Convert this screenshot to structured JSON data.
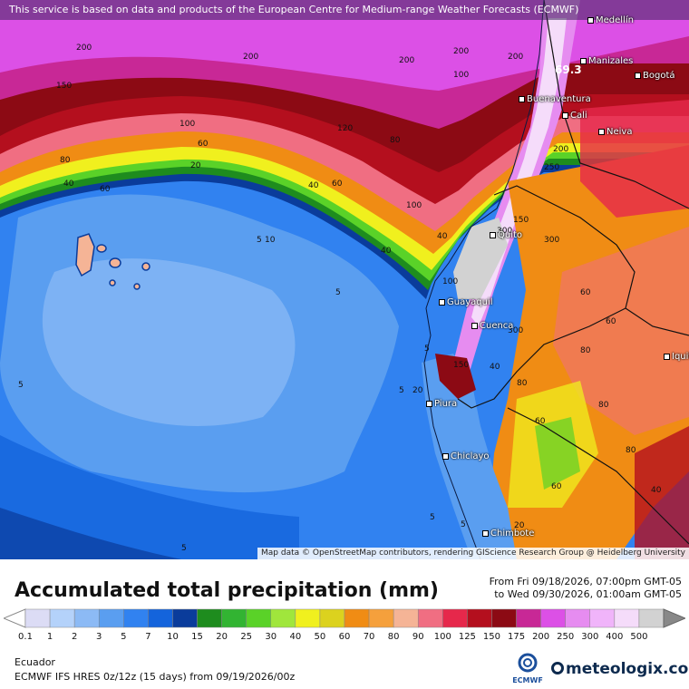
{
  "banner": "This service is based on data and products of the European Centre for Medium-range Weather Forecasts (ECMWF)",
  "attribution": "Map data © OpenStreetMap contributors, rendering GIScience Research Group @ Heidelberg University",
  "title": "Accumulated total precipitation (mm)",
  "date_from": "From Fri 09/18/2026, 07:00pm GMT-05",
  "date_to": "to Wed 09/30/2026, 01:00am GMT-05",
  "region": "Ecuador",
  "model": "ECMWF IFS HRES 0z/12z (15 days) from 09/19/2026/00z",
  "ecmwf_label": "ECMWF",
  "brand": "meteologix.com",
  "legend": {
    "ticks": [
      "0.1",
      "1",
      "2",
      "3",
      "5",
      "7",
      "10",
      "15",
      "20",
      "25",
      "30",
      "40",
      "50",
      "60",
      "70",
      "80",
      "90",
      "100",
      "125",
      "150",
      "175",
      "200",
      "250",
      "300",
      "400",
      "500"
    ],
    "colors": [
      "#dcdcf5",
      "#b4d2fa",
      "#8cbaf5",
      "#5a9ef0",
      "#3182f0",
      "#1464dc",
      "#0a3c9b",
      "#1e8c1e",
      "#32b432",
      "#5ad228",
      "#a0e63c",
      "#f0f01e",
      "#dcd21e",
      "#f08c14",
      "#f5a03c",
      "#f5b496",
      "#f06e82",
      "#e6284b",
      "#b40f1e",
      "#8c0a14",
      "#c82896",
      "#dc50e6",
      "#e68cf0",
      "#f0b4fa",
      "#f5dcfa",
      "#d2d2d2"
    ]
  },
  "cities": [
    {
      "name": "Medellín"
    },
    {
      "name": "Manizales"
    },
    {
      "name": "Bogotá"
    },
    {
      "name": "Buenaventura"
    },
    {
      "name": "Cali"
    },
    {
      "name": "Neiva"
    },
    {
      "name": "Quito"
    },
    {
      "name": "Guayaquil"
    },
    {
      "name": "Cuenca"
    },
    {
      "name": "Iquit"
    },
    {
      "name": "Piura"
    },
    {
      "name": "Chiclayo"
    },
    {
      "name": "Chimbote"
    }
  ],
  "contour_labels": [
    "200",
    "200",
    "200",
    "200",
    "200",
    "150",
    "120",
    "100",
    "100",
    "80",
    "80",
    "60",
    "60",
    "60",
    "40",
    "40",
    "20",
    "5",
    "5",
    "5",
    "5",
    "5",
    "5",
    "5",
    "10",
    "40",
    "40",
    "60",
    "60",
    "80",
    "80",
    "80",
    "100",
    "100",
    "150",
    "150",
    "200",
    "250",
    "300",
    "300",
    "300",
    "40",
    "60",
    "60",
    "40",
    "80",
    "20",
    "20",
    "5",
    "69.3"
  ]
}
